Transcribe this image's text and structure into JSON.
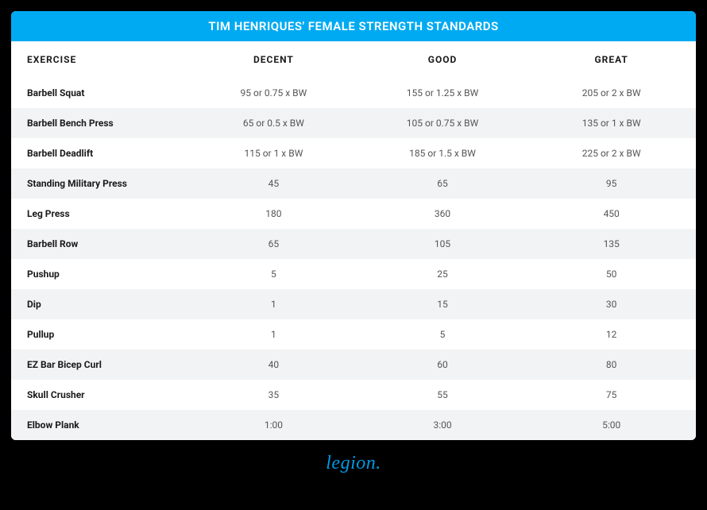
{
  "title": "TIM HENRIQUES' FEMALE STRENGTH STANDARDS",
  "columns": [
    "EXERCISE",
    "DECENT",
    "GOOD",
    "GREAT"
  ],
  "rows": [
    {
      "exercise": "Barbell Squat",
      "decent": "95 or 0.75 x BW",
      "good": "155 or 1.25 x BW",
      "great": "205 or 2 x BW"
    },
    {
      "exercise": "Barbell Bench Press",
      "decent": "65 or 0.5 x BW",
      "good": "105 or 0.75 x BW",
      "great": "135 or 1 x BW"
    },
    {
      "exercise": "Barbell Deadlift",
      "decent": "115 or 1 x BW",
      "good": "185 or 1.5 x BW",
      "great": "225 or 2 x BW"
    },
    {
      "exercise": "Standing Military Press",
      "decent": "45",
      "good": "65",
      "great": "95"
    },
    {
      "exercise": "Leg Press",
      "decent": "180",
      "good": "360",
      "great": "450"
    },
    {
      "exercise": "Barbell Row",
      "decent": "65",
      "good": "105",
      "great": "135"
    },
    {
      "exercise": "Pushup",
      "decent": "5",
      "good": "25",
      "great": "50"
    },
    {
      "exercise": "Dip",
      "decent": "1",
      "good": "15",
      "great": "30"
    },
    {
      "exercise": "Pullup",
      "decent": "1",
      "good": "5",
      "great": "12"
    },
    {
      "exercise": "EZ Bar Bicep Curl",
      "decent": "40",
      "good": "60",
      "great": "80"
    },
    {
      "exercise": "Skull Crusher",
      "decent": "35",
      "good": "55",
      "great": "75"
    },
    {
      "exercise": "Elbow Plank",
      "decent": "1:00",
      "good": "3:00",
      "great": "5:00"
    }
  ],
  "brand": "legion.",
  "colors": {
    "header_bg": "#00aaf2",
    "header_text": "#ffffff",
    "row_alt_bg": "#f2f3f5",
    "brand_color": "#0099e5",
    "page_bg": "#000000"
  }
}
